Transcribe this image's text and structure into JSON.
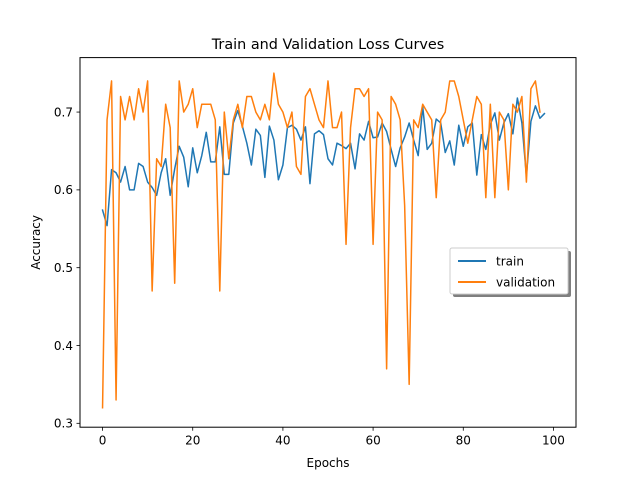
{
  "chart_data": {
    "type": "line",
    "title": "Train and Validation Loss Curves",
    "xlabel": "Epochs",
    "ylabel": "Accuracy",
    "xlim": [
      -5,
      105
    ],
    "ylim": [
      0.295,
      0.77
    ],
    "xticks": [
      0,
      20,
      40,
      60,
      80,
      100
    ],
    "yticks": [
      0.3,
      0.4,
      0.5,
      0.6,
      0.7
    ],
    "ytick_labels": [
      "0.3",
      "0.4",
      "0.5",
      "0.6",
      "0.7"
    ],
    "grid": false,
    "legend_position": "center-right",
    "series": [
      {
        "name": "train",
        "color": "#1f77b4",
        "values": [
          0.574,
          0.554,
          0.626,
          0.622,
          0.61,
          0.63,
          0.6,
          0.6,
          0.634,
          0.63,
          0.61,
          0.603,
          0.593,
          0.622,
          0.64,
          0.593,
          0.627,
          0.656,
          0.642,
          0.604,
          0.654,
          0.622,
          0.644,
          0.674,
          0.636,
          0.636,
          0.681,
          0.62,
          0.62,
          0.686,
          0.702,
          0.682,
          0.66,
          0.632,
          0.678,
          0.67,
          0.616,
          0.682,
          0.664,
          0.613,
          0.632,
          0.68,
          0.683,
          0.678,
          0.664,
          0.681,
          0.608,
          0.672,
          0.676,
          0.671,
          0.64,
          0.632,
          0.66,
          0.657,
          0.653,
          0.66,
          0.627,
          0.672,
          0.664,
          0.688,
          0.667,
          0.668,
          0.686,
          0.675,
          0.652,
          0.63,
          0.654,
          0.668,
          0.686,
          0.664,
          0.644,
          0.707,
          0.652,
          0.66,
          0.691,
          0.686,
          0.648,
          0.663,
          0.632,
          0.683,
          0.656,
          0.681,
          0.686,
          0.619,
          0.671,
          0.652,
          0.684,
          0.699,
          0.664,
          0.686,
          0.698,
          0.672,
          0.718,
          0.686,
          0.618,
          0.688,
          0.708,
          0.692,
          0.698
        ]
      },
      {
        "name": "validation",
        "color": "#ff7f0e",
        "values": [
          0.32,
          0.69,
          0.74,
          0.33,
          0.72,
          0.69,
          0.72,
          0.69,
          0.73,
          0.7,
          0.74,
          0.47,
          0.64,
          0.63,
          0.71,
          0.68,
          0.48,
          0.74,
          0.7,
          0.71,
          0.73,
          0.68,
          0.71,
          0.71,
          0.71,
          0.69,
          0.47,
          0.7,
          0.64,
          0.69,
          0.71,
          0.68,
          0.72,
          0.72,
          0.7,
          0.69,
          0.71,
          0.69,
          0.75,
          0.71,
          0.7,
          0.68,
          0.7,
          0.63,
          0.62,
          0.72,
          0.73,
          0.71,
          0.69,
          0.68,
          0.74,
          0.68,
          0.68,
          0.7,
          0.53,
          0.68,
          0.73,
          0.73,
          0.72,
          0.73,
          0.53,
          0.7,
          0.69,
          0.37,
          0.72,
          0.71,
          0.69,
          0.58,
          0.35,
          0.69,
          0.68,
          0.71,
          0.7,
          0.69,
          0.59,
          0.69,
          0.7,
          0.74,
          0.74,
          0.72,
          0.69,
          0.66,
          0.69,
          0.72,
          0.71,
          0.59,
          0.71,
          0.59,
          0.7,
          0.69,
          0.6,
          0.71,
          0.7,
          0.72,
          0.61,
          0.73,
          0.74,
          0.7
        ]
      }
    ]
  }
}
